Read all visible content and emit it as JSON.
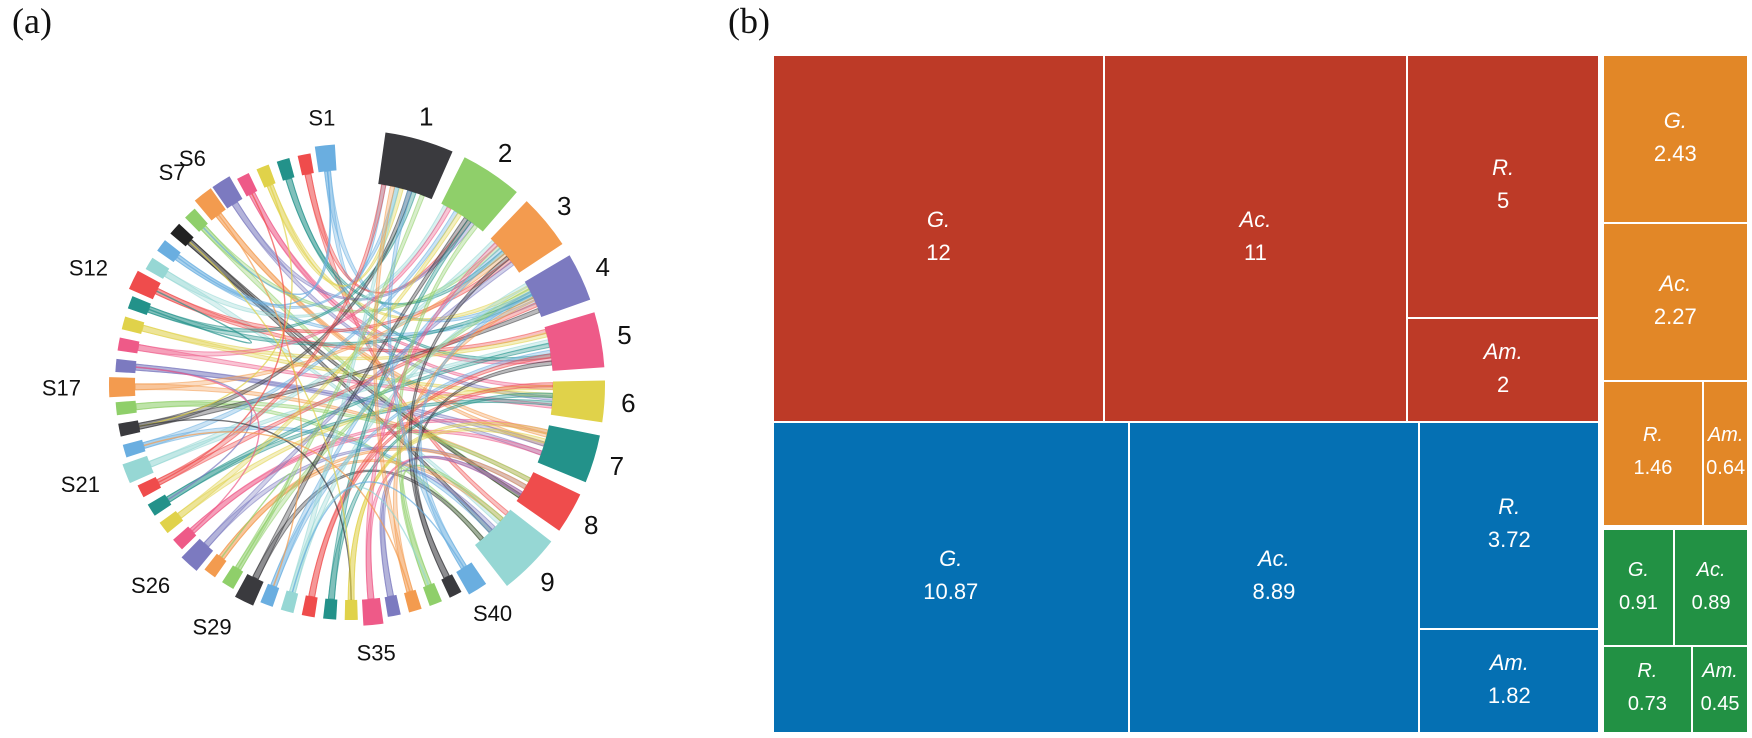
{
  "panels": {
    "a": "(a)",
    "b": "(b)"
  },
  "chart_data": [
    {
      "type": "chord",
      "panel": "(a)",
      "groups_right": [
        {
          "label": "1",
          "color": "#3a3a3e",
          "weight": 10
        },
        {
          "label": "2",
          "color": "#8fcf6a",
          "weight": 9
        },
        {
          "label": "3",
          "color": "#f39b4f",
          "weight": 8
        },
        {
          "label": "4",
          "color": "#7c7ac0",
          "weight": 7
        },
        {
          "label": "5",
          "color": "#ee5a88",
          "weight": 8
        },
        {
          "label": "6",
          "color": "#e0d24a",
          "weight": 6
        },
        {
          "label": "7",
          "color": "#23928a",
          "weight": 7
        },
        {
          "label": "8",
          "color": "#ef4c4c",
          "weight": 6
        },
        {
          "label": "9",
          "color": "#96d7d4",
          "weight": 9
        }
      ],
      "samples": [
        {
          "label": "S1",
          "color": "#6aaee0"
        },
        {
          "label": "",
          "color": "#ef4c4c"
        },
        {
          "label": "",
          "color": "#23928a"
        },
        {
          "label": "",
          "color": "#e0d24a"
        },
        {
          "label": "",
          "color": "#ee5a88"
        },
        {
          "label": "S6",
          "color": "#7c7ac0"
        },
        {
          "label": "S7",
          "color": "#f39b4f"
        },
        {
          "label": "",
          "color": "#8fcf6a"
        },
        {
          "label": "",
          "color": "#222222"
        },
        {
          "label": "",
          "color": "#6aaee0"
        },
        {
          "label": "",
          "color": "#96d7d4"
        },
        {
          "label": "S12",
          "color": "#ef4c4c"
        },
        {
          "label": "",
          "color": "#23928a"
        },
        {
          "label": "",
          "color": "#e0d24a"
        },
        {
          "label": "",
          "color": "#ee5a88"
        },
        {
          "label": "",
          "color": "#7c7ac0"
        },
        {
          "label": "S17",
          "color": "#f39b4f"
        },
        {
          "label": "",
          "color": "#8fcf6a"
        },
        {
          "label": "",
          "color": "#3a3a3e"
        },
        {
          "label": "",
          "color": "#6aaee0"
        },
        {
          "label": "S21",
          "color": "#96d7d4"
        },
        {
          "label": "",
          "color": "#ef4c4c"
        },
        {
          "label": "",
          "color": "#23928a"
        },
        {
          "label": "",
          "color": "#e0d24a"
        },
        {
          "label": "",
          "color": "#ee5a88"
        },
        {
          "label": "S26",
          "color": "#7c7ac0"
        },
        {
          "label": "",
          "color": "#f39b4f"
        },
        {
          "label": "",
          "color": "#8fcf6a"
        },
        {
          "label": "S29",
          "color": "#3a3a3e"
        },
        {
          "label": "",
          "color": "#6aaee0"
        },
        {
          "label": "",
          "color": "#96d7d4"
        },
        {
          "label": "",
          "color": "#ef4c4c"
        },
        {
          "label": "",
          "color": "#23928a"
        },
        {
          "label": "",
          "color": "#e0d24a"
        },
        {
          "label": "S35",
          "color": "#ee5a88"
        },
        {
          "label": "",
          "color": "#7c7ac0"
        },
        {
          "label": "",
          "color": "#f39b4f"
        },
        {
          "label": "",
          "color": "#8fcf6a"
        },
        {
          "label": "",
          "color": "#3a3a3e"
        },
        {
          "label": "S40",
          "color": "#6aaee0"
        }
      ]
    },
    {
      "type": "treemap",
      "panel": "(b)",
      "groups": [
        {
          "name": "red",
          "color": "#bd3a27",
          "items": [
            {
              "genus": "G.",
              "value": "12"
            },
            {
              "genus": "Ac.",
              "value": "11"
            },
            {
              "genus": "R.",
              "value": "5"
            },
            {
              "genus": "Am.",
              "value": "2"
            }
          ]
        },
        {
          "name": "blue",
          "color": "#0570b3",
          "items": [
            {
              "genus": "G.",
              "value": "10.87"
            },
            {
              "genus": "Ac.",
              "value": "8.89"
            },
            {
              "genus": "R.",
              "value": "3.72"
            },
            {
              "genus": "Am.",
              "value": "1.82"
            }
          ]
        },
        {
          "name": "orange",
          "color": "#e28727",
          "items": [
            {
              "genus": "G.",
              "value": "2.43"
            },
            {
              "genus": "Ac.",
              "value": "2.27"
            },
            {
              "genus": "R.",
              "value": "1.46"
            },
            {
              "genus": "Am.",
              "value": "0.64"
            }
          ]
        },
        {
          "name": "green",
          "color": "#229144",
          "items": [
            {
              "genus": "G.",
              "value": "0.91"
            },
            {
              "genus": "Ac.",
              "value": "0.89"
            },
            {
              "genus": "R.",
              "value": "0.73"
            },
            {
              "genus": "Am.",
              "value": "0.45"
            }
          ]
        }
      ]
    }
  ]
}
